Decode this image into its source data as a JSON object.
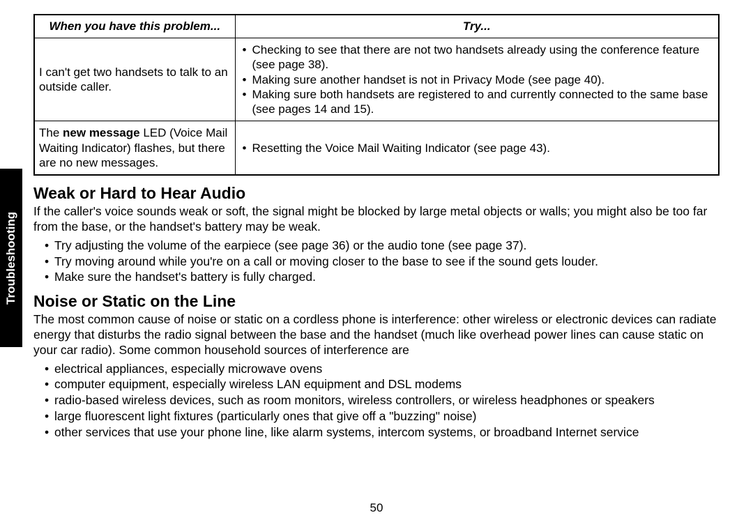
{
  "sidebar": {
    "label": "Troubleshooting"
  },
  "table": {
    "header": {
      "problem": "When you have this problem...",
      "try": "Try..."
    },
    "rows": [
      {
        "problem_html": "I can't get two handsets to talk to an outside caller.",
        "try_items": [
          "Checking to see that there are not two handsets already using the conference feature (see page 38).",
          "Making sure another handset is not in Privacy Mode (see page 40).",
          "Making sure both handsets are registered to and currently connected to the same base (see pages 14 and 15)."
        ]
      },
      {
        "problem_prefix": "The ",
        "problem_bold": "new message",
        "problem_suffix": " LED (Voice Mail Waiting Indicator) flashes, but there are no new messages.",
        "try_items": [
          "Resetting the Voice Mail Waiting Indicator (see page 43)."
        ]
      }
    ]
  },
  "section1": {
    "heading": "Weak or Hard to Hear Audio",
    "para": "If the caller's voice sounds weak or soft, the signal might be blocked by large metal objects or walls; you might also be too far from the base, or the handset's battery may be weak.",
    "bullets": [
      "Try adjusting the volume of the earpiece (see page 36) or the audio tone (see page 37).",
      "Try moving around while you're on a call or moving closer to the base to see if the sound gets louder.",
      "Make sure the handset's battery is fully charged."
    ]
  },
  "section2": {
    "heading": "Noise or Static on the Line",
    "para": "The most common cause of noise or static on a cordless phone is interference: other wireless or electronic devices can radiate energy that disturbs the radio signal between the base and the handset (much like overhead power lines can cause static on your car radio). Some common household sources of interference are",
    "bullets": [
      "electrical appliances, especially microwave ovens",
      "computer equipment, especially wireless LAN equipment and DSL modems",
      "radio-based wireless devices, such as room monitors, wireless controllers, or wireless headphones or speakers",
      "large fluorescent light fixtures (particularly ones that give off a \"buzzing\" noise)",
      "other services that use your phone line, like alarm systems, intercom systems, or broadband Internet service"
    ]
  },
  "page_number": "50"
}
